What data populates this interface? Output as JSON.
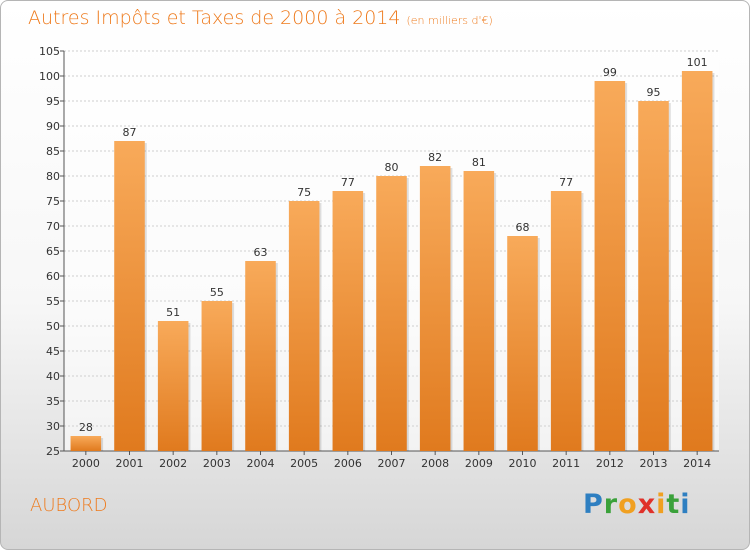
{
  "header": {
    "title": "Autres Impôts et Taxes de 2000 à 2014",
    "unit": "(en milliers d'€)"
  },
  "footer": {
    "commune": "AUBORD",
    "logo_letters": [
      "P",
      "r",
      "o",
      "x",
      "i",
      "t",
      "i"
    ]
  },
  "colors": {
    "title": "#ee7a1c",
    "bar_light": "#f8aa5a",
    "bar_dark": "#e07a1e",
    "logo": [
      "#2e7fc1",
      "#3aa13a",
      "#f0a020",
      "#e0312a",
      "#f0a020",
      "#3aa13a",
      "#2e7fc1"
    ]
  },
  "chart_data": {
    "type": "bar",
    "title": "Autres Impôts et Taxes de 2000 à 2014",
    "subtitle": "(en milliers d'€)",
    "categories": [
      "2000",
      "2001",
      "2002",
      "2003",
      "2004",
      "2005",
      "2006",
      "2007",
      "2008",
      "2009",
      "2010",
      "2011",
      "2012",
      "2013",
      "2014"
    ],
    "values": [
      28,
      87,
      51,
      55,
      63,
      75,
      77,
      80,
      82,
      81,
      68,
      77,
      99,
      95,
      101
    ],
    "ylim": [
      25,
      105
    ],
    "yticks": [
      25,
      30,
      35,
      40,
      45,
      50,
      55,
      60,
      65,
      70,
      75,
      80,
      85,
      90,
      95,
      100,
      105
    ],
    "grid": true,
    "legend": "none"
  }
}
